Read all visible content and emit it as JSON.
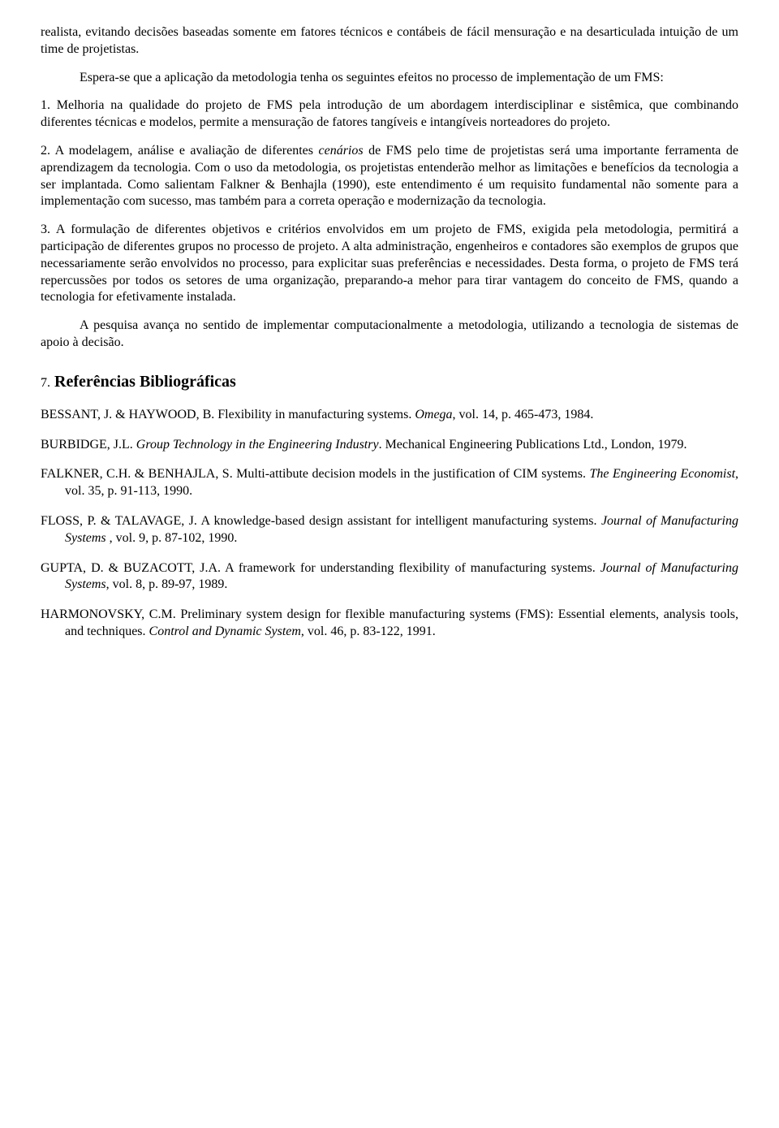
{
  "paragraphs": {
    "p1": "realista, evitando decisões baseadas somente em fatores técnicos e contábeis de fácil mensuração e na desarticulada intuição de um time de projetistas.",
    "p2": "Espera-se que a aplicação da metodologia tenha os seguintes efeitos no processo de implementação de um FMS:",
    "p3_a": "1. Melhoria na qualidade do projeto de FMS pela introdução de um abordagem interdisciplinar e sistêmica, que combinando diferentes técnicas e modelos, permite a mensuração de fatores tangíveis e intangíveis norteadores do projeto.",
    "p3_b_pre": "2. A modelagem, análise e avaliação de diferentes ",
    "p3_b_em": "cenários",
    "p3_b_post": " de FMS pelo time de projetistas será uma importante ferramenta de aprendizagem da tecnologia. Com o uso da metodologia, os projetistas entenderão melhor as limitações e benefícios da tecnologia a ser implantada. Como salientam Falkner & Benhajla (1990), este entendimento é um requisito fundamental não somente para a implementação com sucesso, mas também para a correta operação e modernização da tecnologia.",
    "p3_c": "3. A formulação de diferentes objetivos e critérios envolvidos em um projeto de FMS, exigida pela metodologia, permitirá a participação de diferentes grupos no processo de projeto. A alta administração, engenheiros e contadores são exemplos de grupos que necessariamente serão envolvidos no processo, para explicitar suas preferências e necessidades. Desta forma, o projeto de FMS terá repercussões por todos os setores de uma organização, preparando-a mehor para tirar vantagem do conceito de FMS, quando a tecnologia for efetivamente instalada.",
    "p4": "A pesquisa avança no sentido de implementar computacionalmente a metodologia, utilizando a tecnologia de sistemas de apoio à decisão."
  },
  "heading": {
    "num": "7.",
    "title": "Referências Bibliográficas"
  },
  "refs": {
    "r1_a": "BESSANT, J. & HAYWOOD, B. Flexibility in manufacturing systems. ",
    "r1_i": "Omega",
    "r1_b": ", vol. 14, p. 465-473, 1984.",
    "r2_a": "BURBIDGE, J.L. ",
    "r2_i": "Group Technology in the Engineering Industry",
    "r2_b": ". Mechanical Engineering Publications Ltd., London, 1979.",
    "r3_a": "FALKNER, C.H. & BENHAJLA, S. Multi-attibute decision models in the justification of CIM systems. ",
    "r3_i": "The Engineering Economist",
    "r3_b": ", vol. 35, p. 91-113, 1990.",
    "r4_a": "FLOSS, P. & TALAVAGE, J. A knowledge-based design assistant for intelligent manufacturing systems. ",
    "r4_i": "Journal of Manufacturing Systems",
    "r4_b": " , vol. 9, p. 87-102, 1990.",
    "r5_a": "GUPTA, D. & BUZACOTT, J.A. A framework for understanding flexibility of manufacturing systems. ",
    "r5_i": "Journal of Manufacturing Systems",
    "r5_b": ", vol. 8, p. 89-97, 1989.",
    "r6_a": "HARMONOVSKY, C.M. Preliminary system design for flexible manufacturing systems (FMS): Essential elements, analysis tools, and techniques. ",
    "r6_i": "Control and Dynamic System",
    "r6_b": ", vol. 46, p. 83-122, 1991."
  }
}
